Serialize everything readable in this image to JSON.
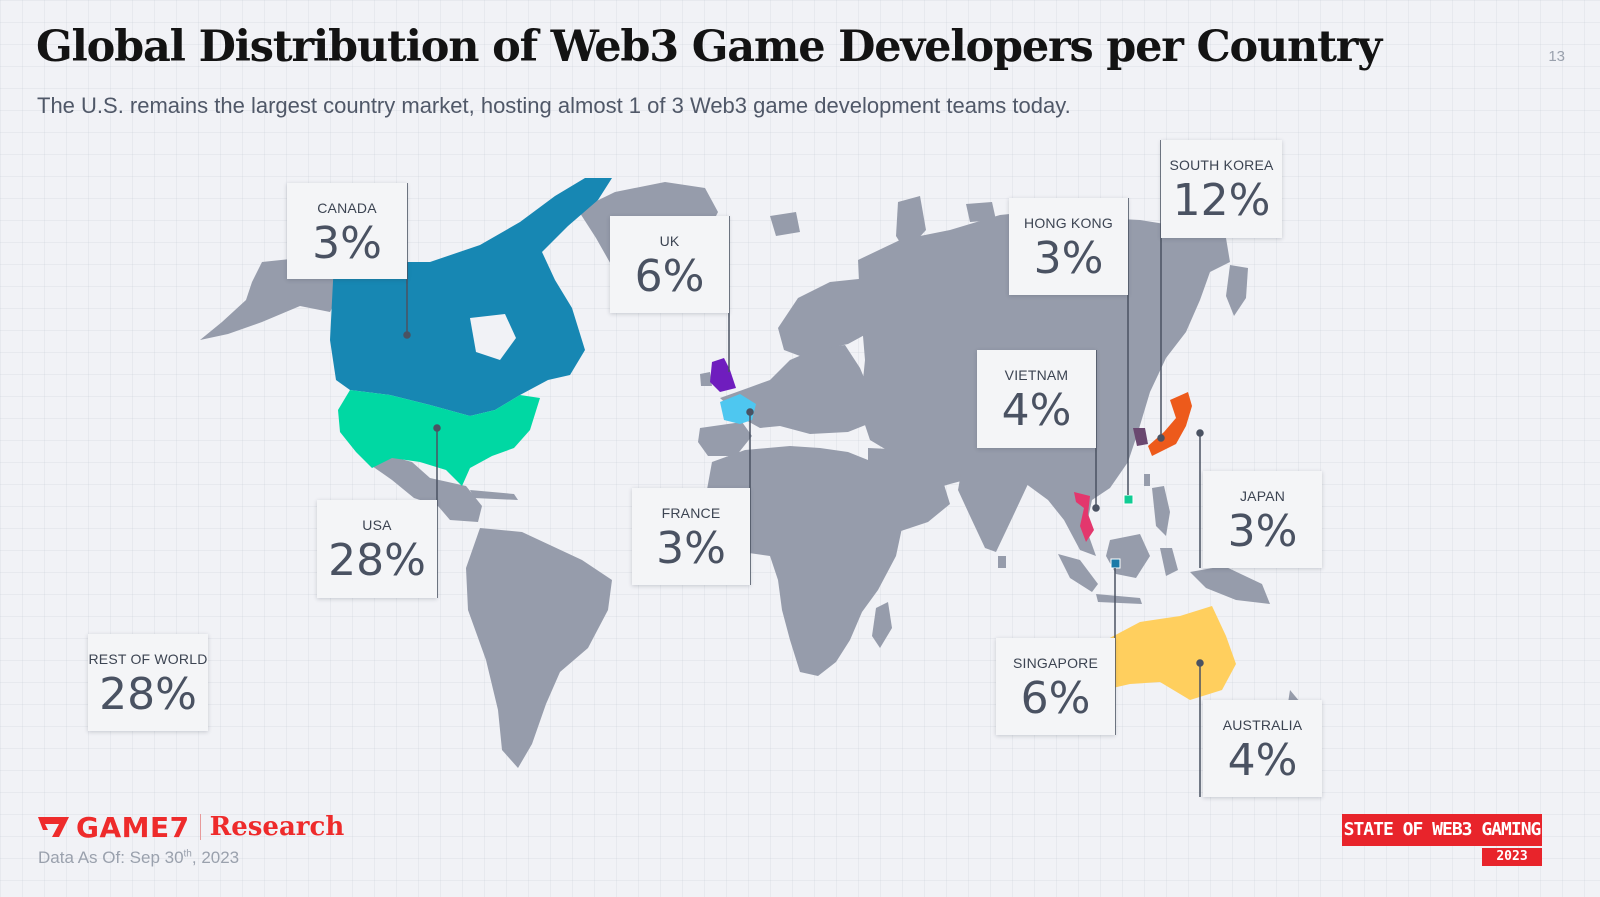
{
  "header": {
    "title": "Global Distribution of Web3 Game Developers per Country",
    "subtitle": "The U.S. remains the largest country market, hosting almost 1 of 3 Web3 game development teams today.",
    "page_number": "13"
  },
  "colors": {
    "land": "#969cab",
    "canada": "#1787b3",
    "usa": "#00d8a3",
    "uk": "#6f1dbe",
    "france": "#4ec7f0",
    "vietnam": "#e3376d",
    "south_korea": "#6a4870",
    "japan": "#ed5a1b",
    "australia": "#ffcf5e",
    "hong_kong": "#10cc94",
    "singapore": "#1a7aa8"
  },
  "map_labels": {
    "canada": {
      "name": "CANADA",
      "value": "3%"
    },
    "uk": {
      "name": "UK",
      "value": "6%"
    },
    "usa": {
      "name": "USA",
      "value": "28%"
    },
    "france": {
      "name": "FRANCE",
      "value": "3%"
    },
    "rest_of_world": {
      "name": "REST OF WORLD",
      "value": "28%"
    },
    "hong_kong": {
      "name": "HONG KONG",
      "value": "3%"
    },
    "south_korea": {
      "name": "SOUTH KOREA",
      "value": "12%"
    },
    "vietnam": {
      "name": "VIETNAM",
      "value": "4%"
    },
    "japan": {
      "name": "JAPAN",
      "value": "3%"
    },
    "singapore": {
      "name": "SINGAPORE",
      "value": "6%"
    },
    "australia": {
      "name": "AUSTRALIA",
      "value": "4%"
    }
  },
  "footer": {
    "brand": "GAME7",
    "research": "Research",
    "data_as_of_prefix": "Data As Of: Sep 30",
    "data_as_of_sup": "th",
    "data_as_of_suffix": ", 2023",
    "badge_line1": "STATE OF WEB3 GAMING",
    "badge_line2": "2023"
  }
}
